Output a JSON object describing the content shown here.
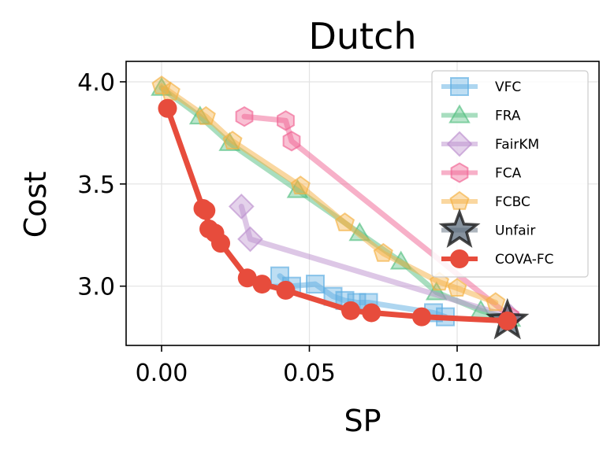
{
  "chart_data": {
    "type": "line",
    "title": "Dutch",
    "xlabel": "SP",
    "ylabel": "Cost",
    "xlim": [
      -0.012,
      0.148
    ],
    "ylim": [
      2.71,
      4.1
    ],
    "xticks": [
      0.0,
      0.05,
      0.1
    ],
    "xtick_labels": [
      "0.00",
      "0.05",
      "0.10"
    ],
    "yticks": [
      3.0,
      3.5,
      4.0
    ],
    "ytick_labels": [
      "3.0",
      "3.5",
      "4.0"
    ],
    "grid": true,
    "legend_position": "top-right",
    "series": [
      {
        "name": "VFC",
        "color": "#5DADE2",
        "marker": "square",
        "x": [
          0.04,
          0.044,
          0.052,
          0.058,
          0.062,
          0.066,
          0.07,
          0.092,
          0.096
        ],
        "y": [
          3.05,
          3.0,
          3.01,
          2.95,
          2.93,
          2.92,
          2.92,
          2.87,
          2.85
        ]
      },
      {
        "name": "FRA",
        "color": "#52BE80",
        "marker": "triangle",
        "x": [
          0.0,
          0.013,
          0.023,
          0.046,
          0.067,
          0.081,
          0.093,
          0.108,
          0.118
        ],
        "y": [
          3.97,
          3.83,
          3.7,
          3.47,
          3.26,
          3.12,
          2.97,
          2.88,
          2.84
        ]
      },
      {
        "name": "FairKM",
        "color": "#BB8FCE",
        "marker": "diamond",
        "x": [
          0.027,
          0.03,
          0.118
        ],
        "y": [
          3.39,
          3.23,
          2.85
        ]
      },
      {
        "name": "FCA",
        "color": "#F06292",
        "marker": "hexagon",
        "x": [
          0.028,
          0.042,
          0.044,
          0.118
        ],
        "y": [
          3.83,
          3.81,
          3.71,
          2.85
        ]
      },
      {
        "name": "FCBC",
        "color": "#F5B041",
        "marker": "pentagon",
        "x": [
          0.0,
          0.003,
          0.015,
          0.024,
          0.047,
          0.062,
          0.075,
          0.094,
          0.1,
          0.113
        ],
        "y": [
          3.98,
          3.95,
          3.83,
          3.71,
          3.49,
          3.31,
          3.16,
          3.02,
          2.99,
          2.92
        ]
      },
      {
        "name": "Unfair",
        "color": "#5D6D7E",
        "marker": "star",
        "x": [
          0.117
        ],
        "y": [
          2.83
        ]
      },
      {
        "name": "COVA-FC",
        "color": "#E74C3C",
        "marker": "circle",
        "x": [
          0.002,
          0.014,
          0.015,
          0.016,
          0.018,
          0.02,
          0.029,
          0.034,
          0.042,
          0.064,
          0.071,
          0.088,
          0.117
        ],
        "y": [
          3.87,
          3.38,
          3.37,
          3.28,
          3.26,
          3.21,
          3.04,
          3.01,
          2.98,
          2.88,
          2.87,
          2.85,
          2.83
        ]
      }
    ]
  }
}
